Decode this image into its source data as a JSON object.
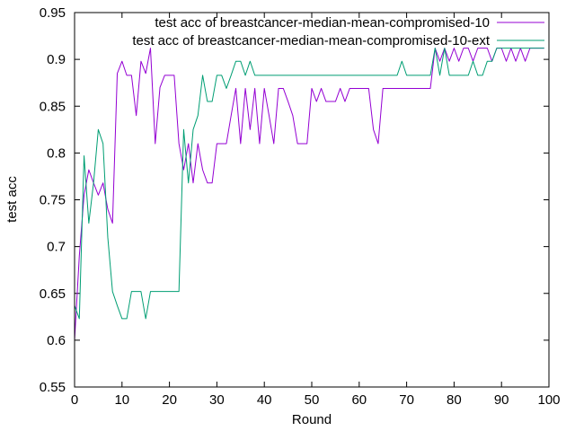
{
  "chart_data": {
    "type": "line",
    "title": "",
    "xlabel": "Round",
    "ylabel": "test acc",
    "xlim": [
      0,
      100
    ],
    "ylim": [
      0.55,
      0.95
    ],
    "xticks": [
      0,
      10,
      20,
      30,
      40,
      50,
      60,
      70,
      80,
      90,
      100
    ],
    "yticks": [
      0.55,
      0.6,
      0.65,
      0.7,
      0.75,
      0.8,
      0.85,
      0.9,
      0.95
    ],
    "legend_position": "top-right",
    "grid": false,
    "series": [
      {
        "name": "test acc of breastcancer-median-mean-compromised-10",
        "color": "#9400d3",
        "x": [
          0,
          1,
          2,
          3,
          4,
          5,
          6,
          7,
          8,
          9,
          10,
          11,
          12,
          13,
          14,
          15,
          16,
          17,
          18,
          19,
          20,
          21,
          22,
          23,
          24,
          25,
          26,
          27,
          28,
          29,
          30,
          31,
          32,
          33,
          34,
          35,
          36,
          37,
          38,
          39,
          40,
          41,
          42,
          43,
          44,
          45,
          46,
          47,
          48,
          49,
          50,
          51,
          52,
          53,
          54,
          55,
          56,
          57,
          58,
          59,
          60,
          61,
          62,
          63,
          64,
          65,
          66,
          67,
          68,
          69,
          70,
          71,
          72,
          73,
          74,
          75,
          76,
          77,
          78,
          79,
          80,
          81,
          82,
          83,
          84,
          85,
          86,
          87,
          88,
          89,
          90,
          91,
          92,
          93,
          94,
          95,
          96,
          97,
          98,
          99
        ],
        "y": [
          0.6,
          0.69,
          0.755,
          0.782,
          0.768,
          0.755,
          0.768,
          0.74,
          0.725,
          0.885,
          0.898,
          0.883,
          0.883,
          0.84,
          0.898,
          0.885,
          0.912,
          0.81,
          0.87,
          0.883,
          0.883,
          0.883,
          0.81,
          0.782,
          0.81,
          0.768,
          0.81,
          0.782,
          0.768,
          0.768,
          0.81,
          0.81,
          0.81,
          0.84,
          0.869,
          0.81,
          0.869,
          0.825,
          0.869,
          0.81,
          0.869,
          0.84,
          0.81,
          0.869,
          0.869,
          0.855,
          0.84,
          0.81,
          0.81,
          0.81,
          0.869,
          0.855,
          0.869,
          0.855,
          0.855,
          0.855,
          0.869,
          0.855,
          0.869,
          0.869,
          0.869,
          0.869,
          0.869,
          0.825,
          0.81,
          0.869,
          0.869,
          0.869,
          0.869,
          0.869,
          0.869,
          0.869,
          0.869,
          0.869,
          0.869,
          0.869,
          0.912,
          0.898,
          0.912,
          0.898,
          0.912,
          0.898,
          0.912,
          0.912,
          0.898,
          0.912,
          0.912,
          0.912,
          0.898,
          0.912,
          0.912,
          0.898,
          0.912,
          0.898,
          0.912,
          0.898,
          0.912,
          0.912,
          0.912,
          0.912
        ]
      },
      {
        "name": "test acc of breastcancer-median-mean-compromised-10-ext",
        "color": "#009e73",
        "x": [
          0,
          1,
          2,
          3,
          4,
          5,
          6,
          7,
          8,
          9,
          10,
          11,
          12,
          13,
          14,
          15,
          16,
          17,
          18,
          19,
          20,
          21,
          22,
          23,
          24,
          25,
          26,
          27,
          28,
          29,
          30,
          31,
          32,
          33,
          34,
          35,
          36,
          37,
          38,
          39,
          40,
          41,
          42,
          43,
          44,
          45,
          46,
          47,
          48,
          49,
          50,
          51,
          52,
          53,
          54,
          55,
          56,
          57,
          58,
          59,
          60,
          61,
          62,
          63,
          64,
          65,
          66,
          67,
          68,
          69,
          70,
          71,
          72,
          73,
          74,
          75,
          76,
          77,
          78,
          79,
          80,
          81,
          82,
          83,
          84,
          85,
          86,
          87,
          88,
          89,
          90,
          91,
          92,
          93,
          94,
          95,
          96,
          97,
          98,
          99
        ],
        "y": [
          0.637,
          0.623,
          0.797,
          0.725,
          0.768,
          0.825,
          0.81,
          0.71,
          0.652,
          0.637,
          0.623,
          0.623,
          0.652,
          0.652,
          0.652,
          0.623,
          0.652,
          0.652,
          0.652,
          0.652,
          0.652,
          0.652,
          0.652,
          0.825,
          0.768,
          0.825,
          0.84,
          0.883,
          0.855,
          0.855,
          0.883,
          0.883,
          0.869,
          0.883,
          0.898,
          0.898,
          0.883,
          0.898,
          0.883,
          0.883,
          0.883,
          0.883,
          0.883,
          0.883,
          0.883,
          0.883,
          0.883,
          0.883,
          0.883,
          0.883,
          0.883,
          0.883,
          0.883,
          0.883,
          0.883,
          0.883,
          0.883,
          0.883,
          0.883,
          0.883,
          0.883,
          0.883,
          0.883,
          0.883,
          0.883,
          0.883,
          0.883,
          0.883,
          0.883,
          0.898,
          0.883,
          0.883,
          0.883,
          0.883,
          0.883,
          0.883,
          0.912,
          0.883,
          0.912,
          0.883,
          0.883,
          0.883,
          0.883,
          0.883,
          0.898,
          0.883,
          0.883,
          0.898,
          0.898,
          0.912,
          0.912,
          0.912,
          0.912,
          0.912,
          0.912,
          0.912,
          0.912,
          0.912,
          0.912,
          0.912
        ]
      }
    ]
  }
}
